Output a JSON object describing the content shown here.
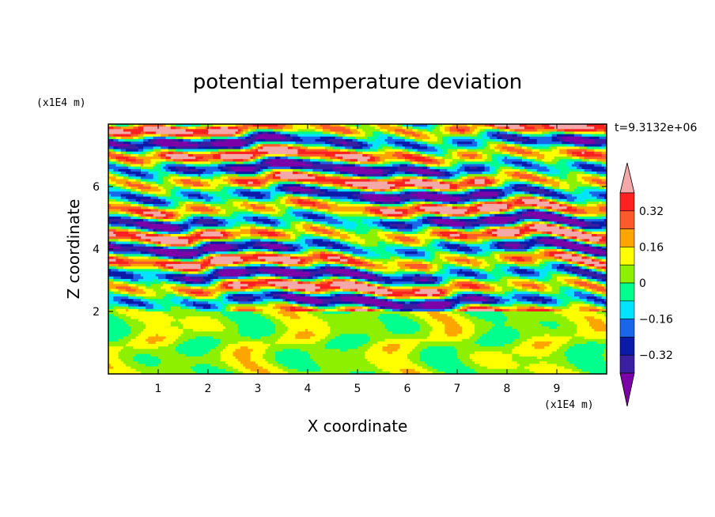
{
  "chart_data": {
    "type": "heatmap",
    "title": "potential temperature deviation",
    "xlabel": "X coordinate",
    "ylabel": "Z coordinate",
    "x_unit": "(x1E4 m)",
    "y_unit": "(x1E4 m)",
    "time_label": "t=9.3132e+06",
    "xlim": [
      0,
      10
    ],
    "ylim": [
      0,
      8
    ],
    "x_ticks": [
      1,
      2,
      3,
      4,
      5,
      6,
      7,
      8,
      9
    ],
    "y_ticks": [
      2,
      4,
      6
    ],
    "colorbar": {
      "tick_values": [
        0.32,
        0.16,
        0,
        -0.16,
        -0.32
      ],
      "tick_labels": [
        "0.32",
        "0.16",
        "0",
        "−0.16",
        "−0.32"
      ],
      "levels": [
        -0.4,
        -0.32,
        -0.24,
        -0.16,
        -0.08,
        0,
        0.08,
        0.16,
        0.24,
        0.32,
        0.4
      ],
      "colors": [
        "#7b00a8",
        "#3a1fa0",
        "#0b1aa8",
        "#1a66e8",
        "#00e4ff",
        "#00ff8c",
        "#8cf000",
        "#ffff00",
        "#ffa500",
        "#ff5a2a",
        "#ff2020",
        "#f5a8a8"
      ],
      "extend": "both"
    },
    "layers": [
      {
        "z_range": [
          0,
          2
        ],
        "pattern": "weak near-zero mottled field (green / light-green)"
      },
      {
        "z_range": [
          2,
          8
        ],
        "pattern": "horizontal layered bands alternating strongly positive (pink) and strongly negative (purple) with intermediate contours"
      }
    ]
  }
}
